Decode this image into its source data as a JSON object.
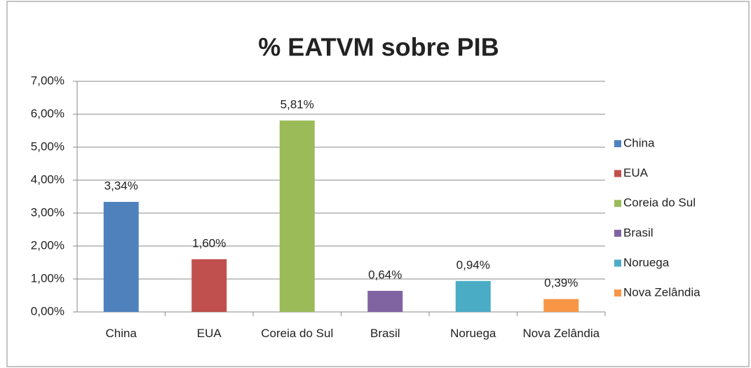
{
  "chart_data": {
    "type": "bar",
    "title": "% EATVM sobre PIB",
    "categories": [
      "China",
      "EUA",
      "Coreia do Sul",
      "Brasil",
      "Noruega",
      "Nova Zelândia"
    ],
    "values": [
      3.34,
      1.6,
      5.81,
      0.64,
      0.94,
      0.39
    ],
    "value_labels": [
      "3,34%",
      "1,60%",
      "5,81%",
      "0,64%",
      "0,94%",
      "0,39%"
    ],
    "colors": [
      "#4f81bd",
      "#c0504d",
      "#9bbb59",
      "#8064a2",
      "#4bacc6",
      "#f79646"
    ],
    "ylim": [
      0,
      7
    ],
    "yticks": [
      {
        "value": 0,
        "label": "0,00%"
      },
      {
        "value": 1,
        "label": "1,00%"
      },
      {
        "value": 2,
        "label": "2,00%"
      },
      {
        "value": 3,
        "label": "3,00%"
      },
      {
        "value": 4,
        "label": "4,00%"
      },
      {
        "value": 5,
        "label": "5,00%"
      },
      {
        "value": 6,
        "label": "6,00%"
      },
      {
        "value": 7,
        "label": "7,00%"
      }
    ],
    "grid": true,
    "legend": "right"
  }
}
